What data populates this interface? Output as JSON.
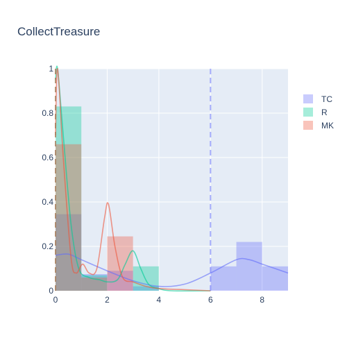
{
  "chart_data": {
    "type": "histogram",
    "title": "CollectTreasure",
    "xlabel": "",
    "ylabel": "",
    "xlim": [
      0,
      9
    ],
    "ylim": [
      0,
      1
    ],
    "x_ticks": [
      "0",
      "2",
      "4",
      "6",
      "8"
    ],
    "y_ticks": [
      "0",
      "0.2",
      "0.4",
      "0.6",
      "0.8",
      "1"
    ],
    "x_tick_values": [
      0,
      2,
      4,
      6,
      8
    ],
    "y_tick_values": [
      0,
      0.2,
      0.4,
      0.6,
      0.8,
      1
    ],
    "bin_width": 1,
    "grid": true,
    "legend_position": "top-right",
    "series": [
      {
        "name": "TC",
        "color": "#636efa",
        "bins": [
          {
            "x0": 0,
            "x1": 1,
            "y": 0.345
          },
          {
            "x0": 1,
            "x1": 2,
            "y": 0.075
          },
          {
            "x0": 2,
            "x1": 3,
            "y": 0.09
          },
          {
            "x0": 3,
            "x1": 4,
            "y": 0.02
          },
          {
            "x0": 6,
            "x1": 7,
            "y": 0.11
          },
          {
            "x0": 7,
            "x1": 8,
            "y": 0.22
          },
          {
            "x0": 8,
            "x1": 9,
            "y": 0.11
          }
        ],
        "kde": [
          [
            0,
            0.16
          ],
          [
            0.5,
            0.165
          ],
          [
            1,
            0.14
          ],
          [
            2,
            0.09
          ],
          [
            3,
            0.045
          ],
          [
            4,
            0.02
          ],
          [
            5,
            0.03
          ],
          [
            6,
            0.08
          ],
          [
            7,
            0.14
          ],
          [
            7.5,
            0.14
          ],
          [
            8,
            0.12
          ],
          [
            9,
            0.08
          ]
        ],
        "vline": 6
      },
      {
        "name": "R",
        "color": "#00cc96",
        "bins": [
          {
            "x0": 0,
            "x1": 1,
            "y": 0.83
          },
          {
            "x0": 1,
            "x1": 2,
            "y": 0.07
          },
          {
            "x0": 3,
            "x1": 4,
            "y": 0.11
          }
        ],
        "kde": [
          [
            0,
            0.95
          ],
          [
            0.08,
            1.0
          ],
          [
            0.3,
            0.7
          ],
          [
            0.6,
            0.3
          ],
          [
            0.9,
            0.1
          ],
          [
            1.3,
            0.06
          ],
          [
            1.7,
            0.05
          ],
          [
            2,
            0.04
          ],
          [
            2.4,
            0.05
          ],
          [
            2.7,
            0.12
          ],
          [
            3,
            0.18
          ],
          [
            3.3,
            0.1
          ],
          [
            3.6,
            0.03
          ],
          [
            4,
            0.01
          ],
          [
            4.5,
            0.0
          ],
          [
            6,
            0.0
          ]
        ],
        "vline": 0
      },
      {
        "name": "MK",
        "color": "#ef553b",
        "bins": [
          {
            "x0": 0,
            "x1": 1,
            "y": 0.66
          },
          {
            "x0": 1,
            "x1": 2,
            "y": 0.06
          },
          {
            "x0": 2,
            "x1": 3,
            "y": 0.245
          }
        ],
        "kde": [
          [
            0,
            0.7
          ],
          [
            0.08,
            1.0
          ],
          [
            0.3,
            0.6
          ],
          [
            0.6,
            0.15
          ],
          [
            0.8,
            0.08
          ],
          [
            1.05,
            0.12
          ],
          [
            1.3,
            0.08
          ],
          [
            1.6,
            0.1
          ],
          [
            1.9,
            0.33
          ],
          [
            2.05,
            0.39
          ],
          [
            2.3,
            0.2
          ],
          [
            2.6,
            0.06
          ],
          [
            3,
            0.04
          ],
          [
            3.5,
            0.02
          ],
          [
            4,
            0.01
          ],
          [
            5,
            0.005
          ],
          [
            6,
            0.0
          ]
        ],
        "vline": 0
      }
    ]
  }
}
